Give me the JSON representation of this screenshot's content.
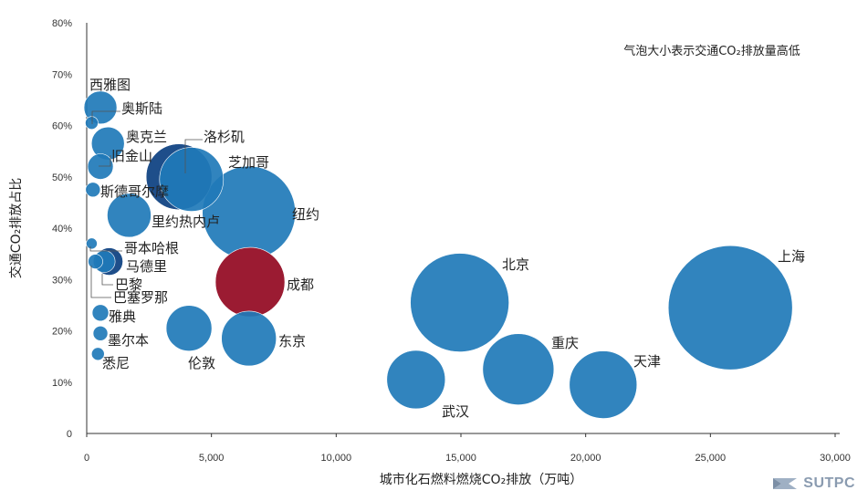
{
  "chart_data": {
    "type": "bubble",
    "title": "",
    "xlabel": "城市化石燃料燃烧CO₂排放（万吨）",
    "ylabel": "交通CO₂排放占比",
    "xlim": [
      0,
      30000
    ],
    "ylim": [
      0,
      80
    ],
    "x_ticks": [
      "0",
      "5,000",
      "10,000",
      "15,000",
      "20,000",
      "25,000",
      "30,000"
    ],
    "y_ticks": [
      "0",
      "10%",
      "20%",
      "30%",
      "40%",
      "50%",
      "60%",
      "70%",
      "80%"
    ],
    "annotation": "气泡大小表示交通CO₂排放量高低",
    "points": [
      {
        "name": "西雅图",
        "x": 550,
        "y": 63.5,
        "size": 18
      },
      {
        "name": "奥斯陆",
        "x": 200,
        "y": 60.5,
        "size": 7
      },
      {
        "name": "奥克兰",
        "x": 850,
        "y": 56.5,
        "size": 18
      },
      {
        "name": "旧金山",
        "x": 550,
        "y": 52.0,
        "size": 14
      },
      {
        "name": "斯德哥尔摩",
        "x": 250,
        "y": 47.5,
        "size": 8
      },
      {
        "name": "洛杉矶",
        "x": 3700,
        "y": 50.0,
        "size": 36
      },
      {
        "name": "芝加哥",
        "x": 4200,
        "y": 49.5,
        "size": 35
      },
      {
        "name": "纽约",
        "x": 6500,
        "y": 43.0,
        "size": 51
      },
      {
        "name": "里约热内卢",
        "x": 1700,
        "y": 42.5,
        "size": 24
      },
      {
        "name": "哥本哈根",
        "x": 200,
        "y": 37.0,
        "size": 6
      },
      {
        "name": "马德里",
        "x": 900,
        "y": 33.5,
        "size": 15
      },
      {
        "name": "巴黎",
        "x": 350,
        "y": 33.5,
        "size": 8
      },
      {
        "name": "巴塞罗那",
        "x": 700,
        "y": 33.5,
        "size": 12
      },
      {
        "name": "成都",
        "x": 6550,
        "y": 29.5,
        "size": 38
      },
      {
        "name": "雅典",
        "x": 550,
        "y": 23.5,
        "size": 9
      },
      {
        "name": "伦敦",
        "x": 4100,
        "y": 20.5,
        "size": 25
      },
      {
        "name": "东京",
        "x": 6500,
        "y": 18.5,
        "size": 30
      },
      {
        "name": "墨尔本",
        "x": 550,
        "y": 19.5,
        "size": 8
      },
      {
        "name": "悉尼",
        "x": 450,
        "y": 15.5,
        "size": 7
      },
      {
        "name": "北京",
        "x": 14950,
        "y": 25.5,
        "size": 54
      },
      {
        "name": "上海",
        "x": 25800,
        "y": 24.5,
        "size": 68
      },
      {
        "name": "武汉",
        "x": 13200,
        "y": 10.5,
        "size": 32
      },
      {
        "name": "重庆",
        "x": 17300,
        "y": 12.5,
        "size": 39
      },
      {
        "name": "天津",
        "x": 20700,
        "y": 9.5,
        "size": 37
      }
    ],
    "highlight": "成都"
  },
  "colors": {
    "bubble": "#1f7ab8",
    "bubble_dark": "#0b3f80",
    "highlight": "#9b1b32",
    "axis": "#333333"
  },
  "brand": {
    "text": "SUTPC"
  }
}
